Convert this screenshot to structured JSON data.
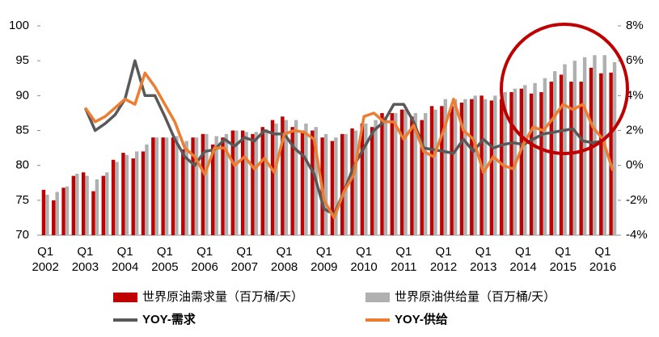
{
  "chart_data": {
    "type": "bar-line",
    "categories": [
      "Q1",
      null,
      null,
      null,
      "Q1",
      null,
      null,
      null,
      "Q1",
      null,
      null,
      null,
      "Q1",
      null,
      null,
      null,
      "Q1",
      null,
      null,
      null,
      "Q1",
      null,
      null,
      null,
      "Q1",
      null,
      null,
      null,
      "Q1",
      null,
      null,
      null,
      "Q1",
      null,
      null,
      null,
      "Q1",
      null,
      null,
      null,
      "Q1",
      null,
      null,
      null,
      "Q1",
      null,
      null,
      null,
      "Q1",
      null,
      null,
      null,
      "Q1",
      null,
      null,
      null,
      "Q1",
      null
    ],
    "category_years": [
      "2002",
      null,
      null,
      null,
      "2003",
      null,
      null,
      null,
      "2004",
      null,
      null,
      null,
      "2005",
      null,
      null,
      null,
      "2006",
      null,
      null,
      null,
      "2007",
      null,
      null,
      null,
      "2008",
      null,
      null,
      null,
      "2009",
      null,
      null,
      null,
      "2010",
      null,
      null,
      null,
      "2011",
      null,
      null,
      null,
      "2012",
      null,
      null,
      null,
      "2013",
      null,
      null,
      null,
      "2014",
      null,
      null,
      null,
      "2015",
      null,
      null,
      null,
      "2016",
      null
    ],
    "series": [
      {
        "name": "世界原油需求量（百万桶/天）",
        "kind": "bar",
        "color": "#c00000",
        "values": [
          76.5,
          75,
          76.8,
          78.5,
          79,
          76.3,
          78.5,
          80.8,
          81.8,
          81,
          82,
          84,
          84,
          84,
          82.3,
          84,
          84.5,
          83,
          84,
          85,
          85,
          84.5,
          85.5,
          86.5,
          87,
          85.5,
          85,
          85,
          84,
          83.5,
          84.5,
          85.3,
          86,
          85.5,
          87.5,
          87.5,
          88,
          87,
          86.5,
          88.5,
          88.5,
          88.5,
          89,
          89.5,
          90,
          89.3,
          89.5,
          90.5,
          91,
          90.3,
          90.5,
          92,
          93,
          92,
          92,
          94,
          93.2,
          93.3
        ]
      },
      {
        "name": "世界原油供给量（百万桶/天）",
        "kind": "bar",
        "color": "#b0b0b0",
        "values": [
          75.8,
          76.2,
          77,
          78.8,
          78.5,
          78,
          79,
          80.5,
          81.5,
          82,
          83,
          84,
          84,
          84.2,
          83.5,
          84,
          84.5,
          84.2,
          84.5,
          85,
          84.8,
          84.8,
          85.2,
          86,
          86.5,
          86.5,
          86,
          85.5,
          84.5,
          84,
          84.5,
          85,
          86,
          86.5,
          87,
          87.5,
          88,
          87.5,
          87.5,
          88,
          89.5,
          89.5,
          89.5,
          90,
          89.5,
          90,
          90.5,
          91,
          91.5,
          91.8,
          92.5,
          93.5,
          94.5,
          95,
          95.5,
          95.8,
          95.8,
          94.8
        ]
      },
      {
        "name": "YOY-需求",
        "kind": "line",
        "axis": "y2",
        "color": "#595959",
        "values": [
          null,
          null,
          null,
          null,
          3.3,
          2.0,
          2.4,
          2.9,
          3.8,
          6.0,
          4.0,
          4.0,
          2.8,
          1.5,
          0.5,
          0.0,
          0.8,
          0.9,
          1.5,
          1.1,
          1.6,
          1.4,
          2.0,
          1.8,
          1.8,
          1.0,
          0.5,
          -0.5,
          -2.5,
          -2.8,
          -1.5,
          0.0,
          1.0,
          2.0,
          2.5,
          3.5,
          3.5,
          2.5,
          1.0,
          0.9,
          0.8,
          0.7,
          1.5,
          0.8,
          1.5,
          1.0,
          1.2,
          1.3,
          1.2,
          1.5,
          1.8,
          1.9,
          2.0,
          2.1,
          1.4,
          1.3,
          1.4,
          null
        ]
      },
      {
        "name": "YOY-供给",
        "kind": "line",
        "axis": "y2",
        "color": "#ed7d31",
        "values": [
          null,
          null,
          null,
          null,
          3.3,
          2.5,
          2.8,
          3.3,
          3.8,
          3.5,
          5.3,
          4.5,
          3.5,
          2.5,
          1.0,
          0.5,
          -0.5,
          1.0,
          1.0,
          0.0,
          0.5,
          -0.2,
          0.4,
          -0.4,
          1.8,
          2.0,
          1.9,
          1.5,
          -2.0,
          -3.0,
          -1.5,
          -0.5,
          2.8,
          3.0,
          2.5,
          2.5,
          1.5,
          2.3,
          0.8,
          0.5,
          2.0,
          3.8,
          2.0,
          1.5,
          -0.4,
          0.5,
          0.0,
          -0.2,
          1.2,
          2.2,
          2.0,
          2.7,
          3.5,
          3.2,
          3.5,
          2.2,
          1.5,
          -0.3
        ]
      }
    ],
    "ylim": [
      70,
      100
    ],
    "yticks": [
      70,
      75,
      80,
      85,
      90,
      95,
      100
    ],
    "y2lim": [
      -4,
      8
    ],
    "y2ticks": [
      {
        "value": -4,
        "label": "-4%"
      },
      {
        "value": -2,
        "label": "-2%"
      },
      {
        "value": 0,
        "label": "0%"
      },
      {
        "value": 2,
        "label": "2%"
      },
      {
        "value": 4,
        "label": "4%"
      },
      {
        "value": 6,
        "label": "6%"
      },
      {
        "value": 8,
        "label": "8%"
      }
    ],
    "grid": false
  }
}
